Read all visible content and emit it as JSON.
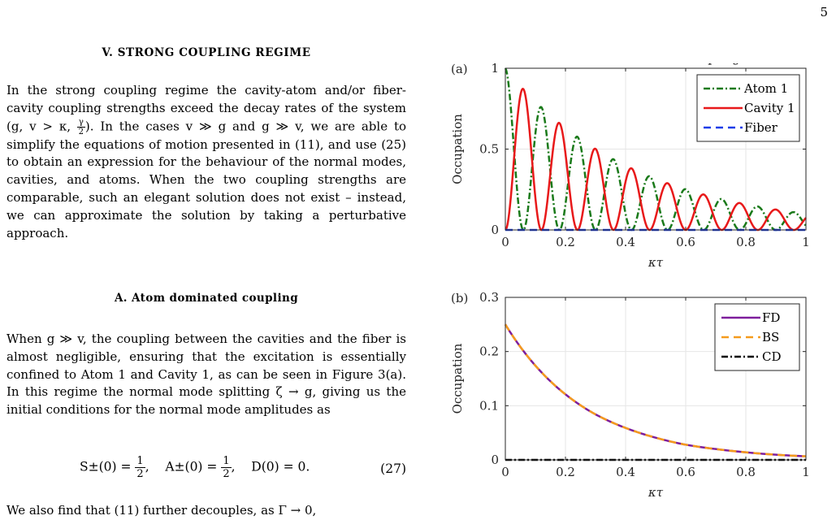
{
  "page_number": "5",
  "section": {
    "title": "V.   STRONG COUPLING REGIME"
  },
  "paragraph1": {
    "a": "In the strong coupling regime the cavity-atom and/or fiber-cavity coupling strengths exceed the decay rates of the system (g, v > κ, ",
    "gamma": "γ",
    "two": "2",
    "b": "). In the cases v ≫ g and g ≫ v, we are able to simplify the equations of motion presented in (11), and use (25) to obtain an expression for the behaviour of the normal modes, cavities, and atoms. When the two coupling strengths are comparable, such an elegant solution does not exist – instead, we can approximate the solution by taking a perturbative approach."
  },
  "subsection": {
    "title": "A.   Atom dominated coupling"
  },
  "paragraph2": "When g ≫ v, the coupling between the cavities and the fiber is almost negligible, ensuring that the excitation is essentially confined to Atom 1 and Cavity 1, as can be seen in Figure 3(a). In this regime the normal mode splitting ζ → g, giving us the initial conditions for the normal mode amplitudes as",
  "equation": {
    "s_lhs": "S±(0) = ",
    "a_lhs": "A±(0) = ",
    "d_term": "D(0) = 0.",
    "num": "1",
    "den": "2",
    "sep": ",",
    "number": "(27)"
  },
  "paragraph3": "We also find that (11) further decouples, as Γ → 0,",
  "chart_data": [
    {
      "panel": "(a)",
      "type": "line",
      "title": "Atom Dominated Coupling",
      "xlabel": "κτ",
      "ylabel": "Occupation",
      "xlim": [
        0,
        1
      ],
      "ylim": [
        0,
        1
      ],
      "xticks": [
        0,
        0.2,
        0.4,
        0.6,
        0.8,
        1
      ],
      "xtick_labels": [
        "0",
        "0.2",
        "0.4",
        "0.6",
        "0.8",
        "1"
      ],
      "yticks": [
        0,
        0.5,
        1
      ],
      "ytick_labels": [
        "0",
        "0.5",
        "1"
      ],
      "grid": true,
      "legend_position": "top-right",
      "series": [
        {
          "name": "Atom 1",
          "color": "#1a7a1a",
          "dash": "dash-dot",
          "model": "1.0*exp(-2.3*x)*cos^2(pi*x/0.12)"
        },
        {
          "name": "Cavity 1",
          "color": "#e8191a",
          "dash": "solid",
          "model": "1.0*exp(-2.3*x)*sin^2(pi*x/0.12)"
        },
        {
          "name": "Fiber",
          "color": "#1a3de8",
          "dash": "dash",
          "model": "0"
        }
      ]
    },
    {
      "panel": "(b)",
      "type": "line",
      "xlabel": "κτ",
      "ylabel": "Occupation",
      "xlim": [
        0,
        1
      ],
      "ylim": [
        0,
        0.3
      ],
      "xticks": [
        0,
        0.2,
        0.4,
        0.6,
        0.8,
        1
      ],
      "xtick_labels": [
        "0",
        "0.2",
        "0.4",
        "0.6",
        "0.8",
        "1"
      ],
      "yticks": [
        0,
        0.1,
        0.2,
        0.3
      ],
      "ytick_labels": [
        "0",
        "0.1",
        "0.2",
        "0.3"
      ],
      "grid": true,
      "legend_position": "top-right",
      "series": [
        {
          "name": "FD",
          "color": "#7e1e9c",
          "dash": "solid",
          "x": [
            0,
            0.1,
            0.2,
            0.3,
            0.4,
            0.5,
            0.6,
            0.7,
            0.8,
            0.9,
            1.0
          ],
          "y": [
            0.25,
            0.174,
            0.121,
            0.084,
            0.059,
            0.041,
            0.028,
            0.02,
            0.014,
            0.0095,
            0.0066
          ]
        },
        {
          "name": "BS",
          "color": "#f59b1c",
          "dash": "dash",
          "x": [
            0,
            0.1,
            0.2,
            0.3,
            0.4,
            0.5,
            0.6,
            0.7,
            0.8,
            0.9,
            1.0
          ],
          "y": [
            0.25,
            0.174,
            0.121,
            0.084,
            0.059,
            0.041,
            0.028,
            0.02,
            0.014,
            0.0095,
            0.0066
          ]
        },
        {
          "name": "CD",
          "color": "#000000",
          "dash": "dash-dot",
          "x": [
            0,
            1
          ],
          "y": [
            0,
            0
          ]
        }
      ]
    }
  ]
}
